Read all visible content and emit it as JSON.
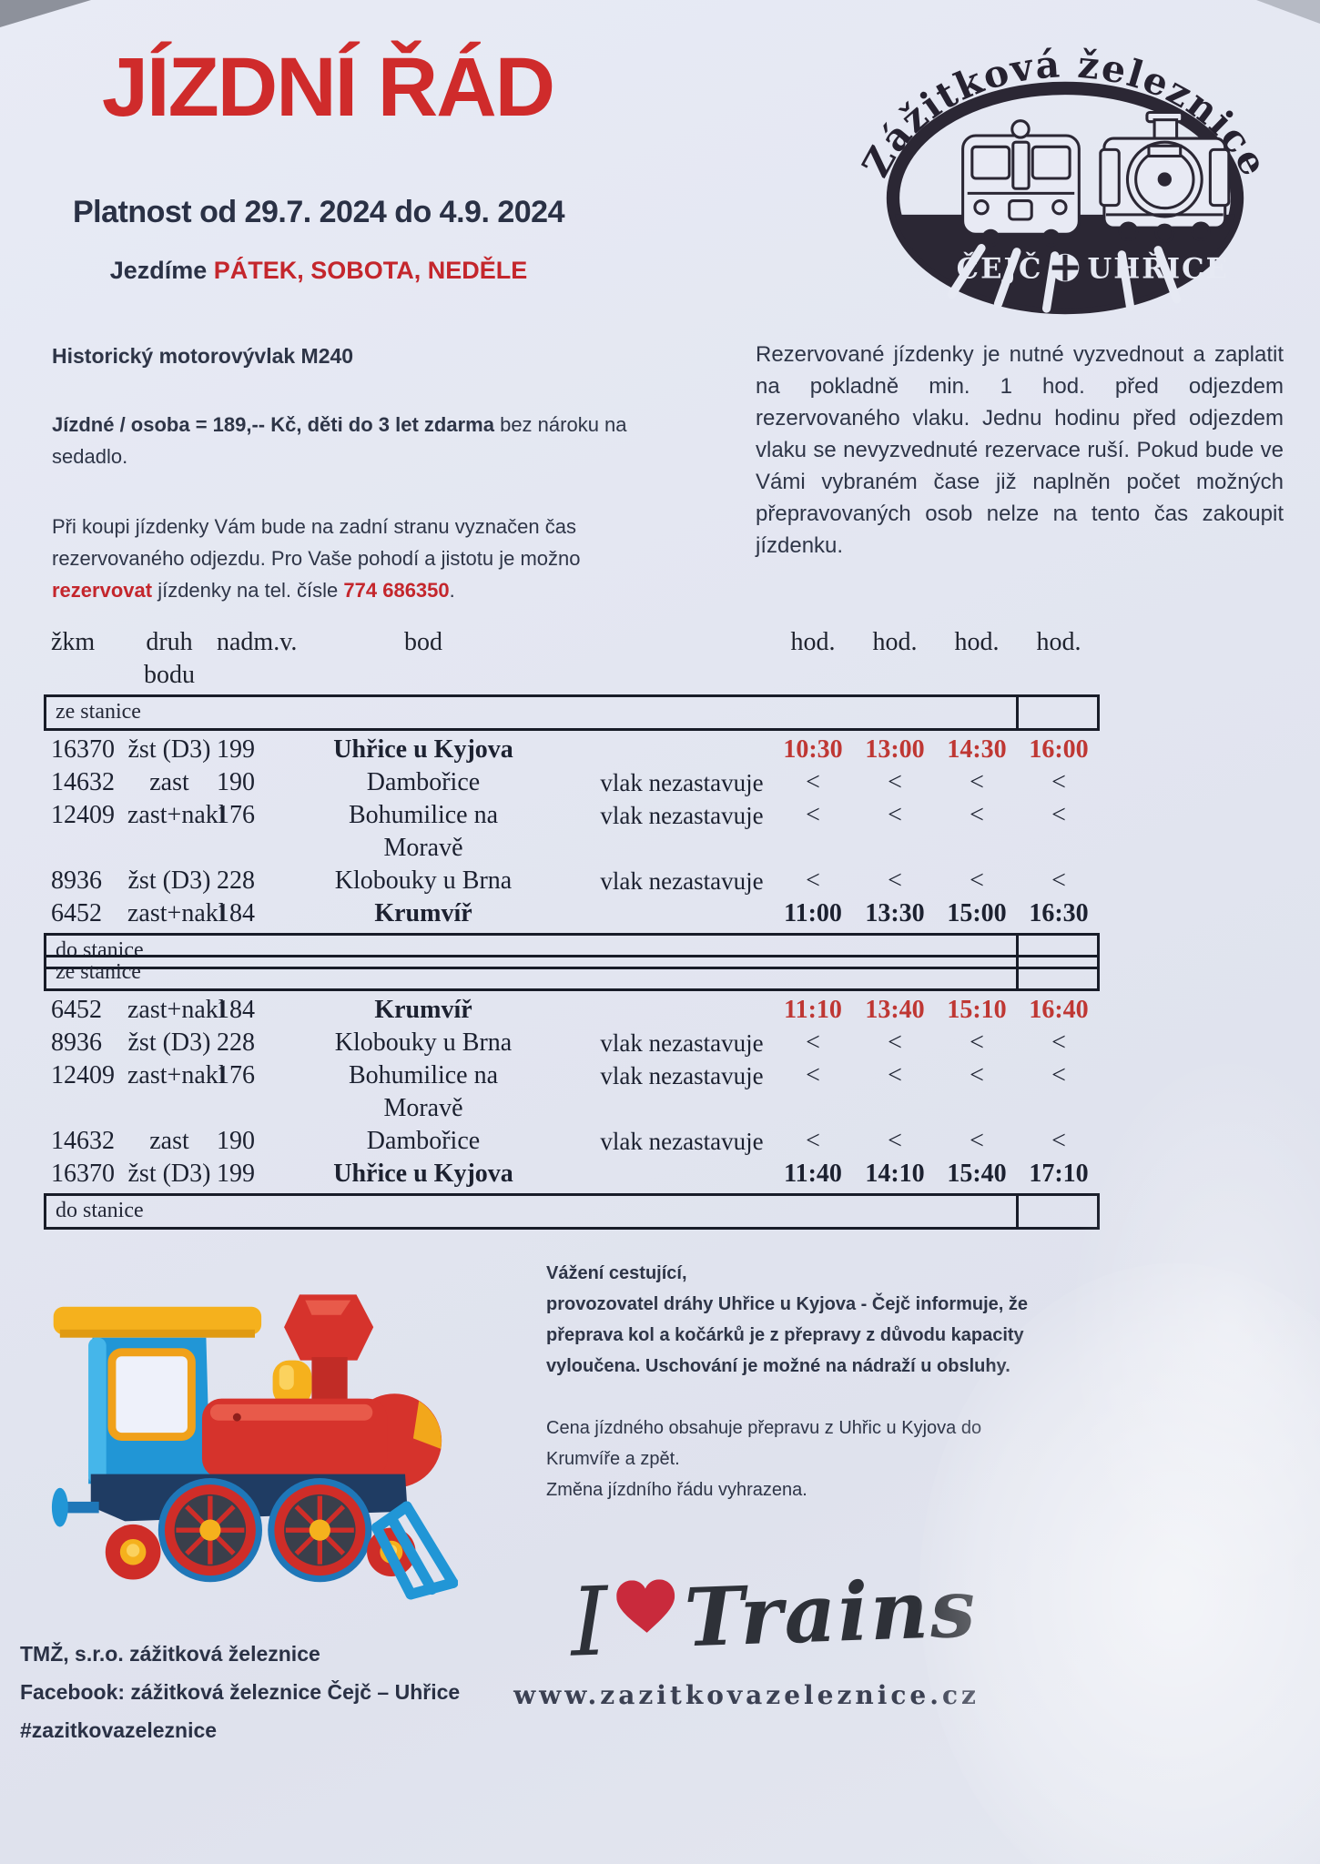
{
  "colors": {
    "accent_red": "#c4262c",
    "navy_text": "#2a3145",
    "time_red": "#bf3733",
    "paper": "#e3e6f1"
  },
  "header": {
    "title": "JÍZDNÍ ŘÁD",
    "validity": "Platnost od 29.7. 2024 do 4.9. 2024",
    "days_prefix": "Jezdíme ",
    "days": "PÁTEK, SOBOTA, NEDĚLE"
  },
  "logo": {
    "arc_text": "Zážitková železnice",
    "station_left": "ČEJČ",
    "station_right": "UHŘICE"
  },
  "info_left": {
    "train_type": "Historický motorovývlak M240",
    "fare_bold": "Jízdné / osoba = 189,-- Kč, děti do 3 let zdarma",
    "fare_regular": " bez nároku na\nsedadlo.",
    "purchase_before": "Při koupi jízdenky Vám bude na zadní stranu vyznačen čas\nrezervovaného odjezdu. Pro Vaše pohodí a jistotu je možno\n",
    "purchase_red": "rezervovat",
    "purchase_mid": " jízdenky na tel. čísle ",
    "purchase_phone": "774 686350",
    "purchase_after": "."
  },
  "info_right": {
    "text": "Rezervované jízdenky je nutné vyzvednout a zaplatit na pokladně min. 1 hod. před odjezdem rezervovaného vlaku. Jednu hodinu před odjezdem vlaku se nevyzvednuté rezervace ruší. Pokud bude ve Vámi vybraném čase již naplněn počet možných přepravovaných osob nelze na tento čas zakoupit jízdenku."
  },
  "timetable": {
    "col_headers": {
      "zkm": "žkm",
      "druh": "druh bodu",
      "nadm": "nadm.v.",
      "bod": "bod",
      "hod": "hod."
    },
    "from_label": "ze stanice",
    "to_label": "do stanice",
    "no_stop": "vlak nezastavuje",
    "pass_mark": "<",
    "outbound_rows": [
      {
        "zkm": "16370",
        "druh": "žst (D3)",
        "nadm": "199",
        "bod": "Uhřice u Kyjova",
        "bold": true,
        "note": "",
        "times": [
          "10:30",
          "13:00",
          "14:30",
          "16:00"
        ],
        "tclass": "red"
      },
      {
        "zkm": "14632",
        "druh": "zast",
        "nadm": "190",
        "bod": "Dambořice",
        "bold": false,
        "note": "vlak nezastavuje",
        "times": [
          "<",
          "<",
          "<",
          "<"
        ],
        "tclass": "skip"
      },
      {
        "zkm": "12409",
        "druh": "zast+nakl",
        "nadm": "176",
        "bod": "Bohumilice na\nMoravě",
        "bold": false,
        "note": "vlak nezastavuje",
        "times": [
          "<",
          "<",
          "<",
          "<"
        ],
        "tclass": "skip"
      },
      {
        "zkm": "8936",
        "druh": "žst (D3)",
        "nadm": "228",
        "bod": "Klobouky u Brna",
        "bold": false,
        "note": "vlak nezastavuje",
        "times": [
          "<",
          "<",
          "<",
          "<"
        ],
        "tclass": "skip"
      },
      {
        "zkm": "6452",
        "druh": "zast+nakl",
        "nadm": "184",
        "bod": "Krumvíř",
        "bold": true,
        "note": "",
        "times": [
          "11:00",
          "13:30",
          "15:00",
          "16:30"
        ],
        "tclass": "bold"
      }
    ],
    "return_rows": [
      {
        "zkm": "6452",
        "druh": "zast+nakl",
        "nadm": "184",
        "bod": "Krumvíř",
        "bold": true,
        "note": "",
        "times": [
          "11:10",
          "13:40",
          "15:10",
          "16:40"
        ],
        "tclass": "red"
      },
      {
        "zkm": "8936",
        "druh": "žst (D3)",
        "nadm": "228",
        "bod": "Klobouky u Brna",
        "bold": false,
        "note": "vlak nezastavuje",
        "times": [
          "<",
          "<",
          "<",
          "<"
        ],
        "tclass": "skip"
      },
      {
        "zkm": "12409",
        "druh": "zast+nakl",
        "nadm": "176",
        "bod": "Bohumilice na\nMoravě",
        "bold": false,
        "note": "vlak nezastavuje",
        "times": [
          "<",
          "<",
          "<",
          "<"
        ],
        "tclass": "skip"
      },
      {
        "zkm": "14632",
        "druh": "zast",
        "nadm": "190",
        "bod": "Dambořice",
        "bold": false,
        "note": "vlak nezastavuje",
        "times": [
          "<",
          "<",
          "<",
          "<"
        ],
        "tclass": "skip"
      },
      {
        "zkm": "16370",
        "druh": "žst (D3)",
        "nadm": "199",
        "bod": "Uhřice u Kyjova",
        "bold": true,
        "note": "",
        "times": [
          "11:40",
          "14:10",
          "15:40",
          "17:10"
        ],
        "tclass": "bold"
      }
    ]
  },
  "notice": {
    "bold_text": "Vážení cestující,\nprovozovatel dráhy Uhřice u Kyjova - Čejč informuje, že\npřeprava kol a kočárků je z přepravy z důvodu kapacity\nvyloučena. Uschování je možné na nádraží u obsluhy.",
    "regular_text": "Cena jízdného obsahuje přepravu z Uhřic u Kyjova do\nKrumvíře a zpět.\nZměna jízdního řádu vyhrazena."
  },
  "footer": {
    "company": "TMŽ, s.r.o. zážitková železnice",
    "facebook": "Facebook: zážitková železnice Čejč – Uhřice",
    "hashtag": "#zazitkovazeleznice",
    "slogan_i": "I",
    "slogan_word": "Trains",
    "website": "www.zazitkovazeleznice.cz"
  }
}
